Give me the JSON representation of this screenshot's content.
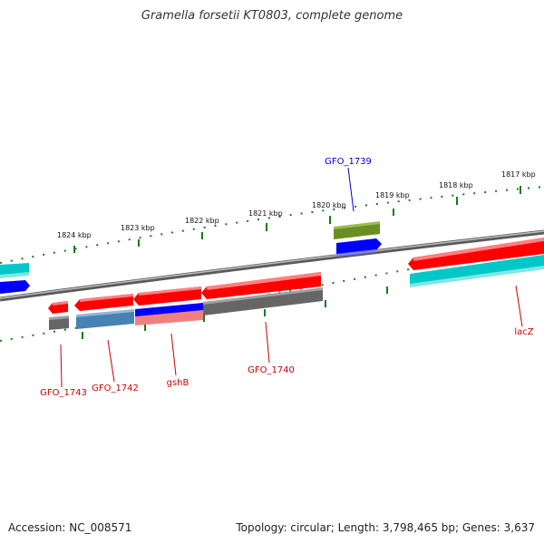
{
  "title": "Gramella forsetii KT0803, complete genome",
  "footer": {
    "accession": "Accession: NC_008571",
    "summary": "Topology: circular; Length: 3,798,465 bp; Genes: 3,637"
  },
  "colors": {
    "backbone": "#808080",
    "tick": "#1a7a1a",
    "label_red": "#cc0000",
    "label_blue": "#0000cc",
    "gene_red": "#ff0000",
    "gene_cyan": "#00c8c8",
    "gene_blue": "#0000ff",
    "gene_olive": "#6b8e23",
    "gene_gray": "#666666",
    "gene_steelblue": "#4682b4",
    "gene_salmon": "#f08080"
  },
  "scale_labels": [
    "1824 kbp",
    "1823 kbp",
    "1822 kbp",
    "1821 kbp",
    "1820 kbp",
    "1819 kbp",
    "1818 kbp",
    "1817 kbp"
  ],
  "gene_labels": [
    "GFO_1739",
    "GFO_1743",
    "GFO_1742",
    "gshB",
    "GFO_1740",
    "lacZ"
  ]
}
